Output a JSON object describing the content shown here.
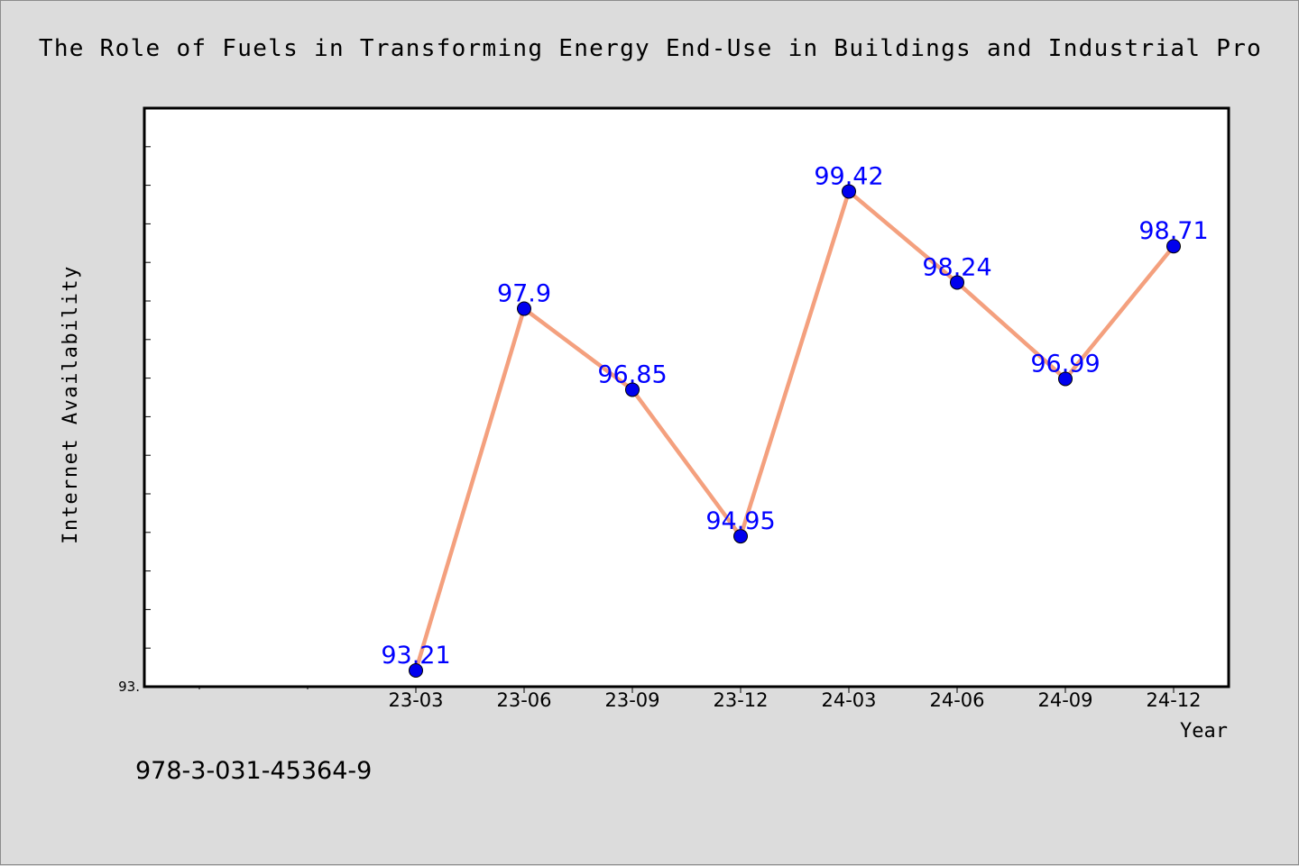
{
  "chart_data": {
    "type": "line",
    "title": "The Role of Fuels in Transforming Energy End-Use in Buildings and Industrial Pro",
    "xlabel": "Year",
    "ylabel": "Internet Availability",
    "categories": [
      "23-03",
      "23-06",
      "23-09",
      "23-12",
      "24-03",
      "24-06",
      "24-09",
      "24-12"
    ],
    "values": [
      93.21,
      97.9,
      96.85,
      94.95,
      99.42,
      98.24,
      96.99,
      98.71
    ],
    "data_labels": [
      "93.21",
      "97.9",
      "96.85",
      "94.95",
      "99.42",
      "98.24",
      "96.99",
      "98.71"
    ],
    "ylim": [
      93.0,
      100.5
    ],
    "y_tick_label": "93.",
    "grid": false,
    "line_color": "#f4a07e",
    "marker_color": "#0000ee",
    "label_color": "#0000ff"
  },
  "footer": {
    "code": "978-3-031-45364-9"
  }
}
